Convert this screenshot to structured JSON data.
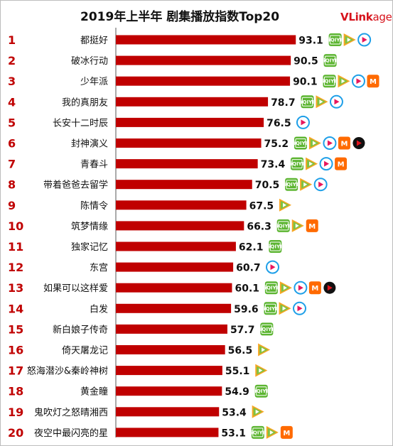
{
  "title": "2019年上半年 剧集播放指数Top20",
  "brand": {
    "v": "V",
    "link": "Link",
    "age": "age"
  },
  "colors": {
    "bar": "#c00000",
    "rank": "#c00000",
    "iqiyi": "#5cb531",
    "tencent_green": "#7ec242",
    "tencent_orange": "#f6a623",
    "youku_blue": "#1e9fe8",
    "mango": "#ff6a00",
    "pptv": "#111111"
  },
  "platform_icons": {
    "iqiyi": "iqiyi-logo-icon",
    "tencent": "tencent-video-play-icon",
    "youku": "youku-play-icon",
    "mango": "mango-tv-icon",
    "pptv": "pptv-play-icon"
  },
  "chart_data": {
    "type": "bar",
    "orientation": "horizontal",
    "title": "2019年上半年 剧集播放指数Top20",
    "xlim": [
      0,
      100
    ],
    "grid": false,
    "legend": "none",
    "series": [
      {
        "values": [
          93.1,
          90.5,
          90.1,
          78.7,
          76.5,
          75.2,
          73.4,
          70.5,
          67.5,
          66.3,
          62.1,
          60.7,
          60.1,
          59.6,
          57.7,
          56.5,
          55.1,
          54.9,
          53.4,
          53.1
        ]
      }
    ],
    "ranks": [
      "1",
      "2",
      "3",
      "4",
      "5",
      "6",
      "7",
      "8",
      "9",
      "10",
      "11",
      "12",
      "13",
      "14",
      "15",
      "16",
      "17",
      "18",
      "19",
      "20"
    ],
    "categories": [
      "都挺好",
      "破冰行动",
      "少年派",
      "我的真朋友",
      "长安十二时辰",
      "封神演义",
      "青春斗",
      "带着爸爸去留学",
      "陈情令",
      "筑梦情缘",
      "独家记忆",
      "东宫",
      "如果可以这样爱",
      "白发",
      "新白娘子传奇",
      "倚天屠龙记",
      "怒海潜沙&秦岭神树",
      "黄金瞳",
      "鬼吹灯之怒晴湘西",
      "夜空中最闪亮的星"
    ],
    "labels": [
      "93.1",
      "90.5",
      "90.1",
      "78.7",
      "76.5",
      "75.2",
      "73.4",
      "70.5",
      "67.5",
      "66.3",
      "62.1",
      "60.7",
      "60.1",
      "59.6",
      "57.7",
      "56.5",
      "55.1",
      "54.9",
      "53.4",
      "53.1"
    ],
    "platforms": [
      [
        "iqiyi",
        "tencent",
        "youku"
      ],
      [
        "iqiyi"
      ],
      [
        "iqiyi",
        "tencent",
        "youku",
        "mango"
      ],
      [
        "iqiyi",
        "tencent",
        "youku"
      ],
      [
        "youku"
      ],
      [
        "iqiyi",
        "tencent",
        "youku",
        "mango",
        "pptv"
      ],
      [
        "iqiyi",
        "tencent",
        "youku",
        "mango"
      ],
      [
        "iqiyi",
        "tencent",
        "youku"
      ],
      [
        "tencent"
      ],
      [
        "iqiyi",
        "tencent",
        "mango"
      ],
      [
        "iqiyi"
      ],
      [
        "youku"
      ],
      [
        "iqiyi",
        "tencent",
        "youku",
        "mango",
        "pptv"
      ],
      [
        "iqiyi",
        "tencent",
        "youku"
      ],
      [
        "iqiyi"
      ],
      [
        "tencent"
      ],
      [
        "tencent"
      ],
      [
        "iqiyi"
      ],
      [
        "tencent"
      ],
      [
        "iqiyi",
        "tencent",
        "mango"
      ]
    ]
  }
}
